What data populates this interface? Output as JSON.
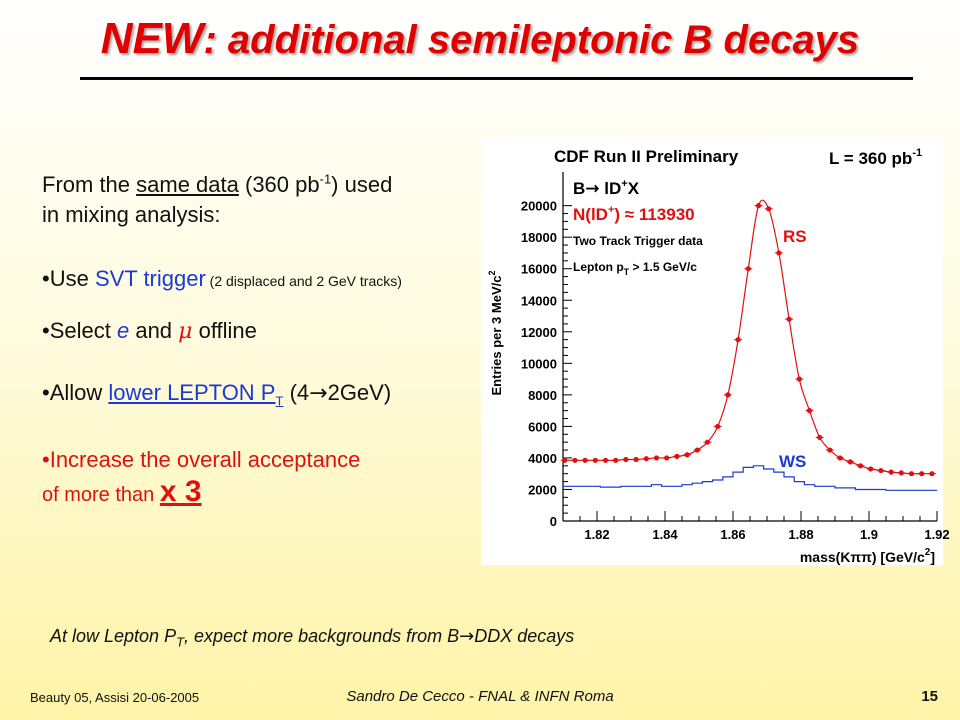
{
  "title": {
    "emph": "NEW",
    "rest": ": additional semileptonic B decays"
  },
  "intro": {
    "p1": "From the ",
    "same_data": "same data",
    "p2": " (360 pb",
    "sup": "-1",
    "p3": ") used",
    "line2": "in mixing analysis:"
  },
  "bullets": {
    "b1_pre": "•Use ",
    "b1_svt": "SVT trigger",
    "b1_small": " (2 displaced and 2 GeV tracks)",
    "b2_pre": "•Select ",
    "b2_e": "e",
    "b2_mid": " and ",
    "b2_mu": "μ",
    "b2_post": " offline",
    "b3_pre": "•Allow ",
    "b3_link": "lower LEPTON P",
    "b3_sub": "T",
    "b3_post": " (4",
    "b3_arrow": "→",
    "b3_end": "2GeV)",
    "b4_line1": "•Increase the overall acceptance",
    "b4_line2": "of more than ",
    "b4_big": "x 3"
  },
  "note": {
    "pre": "At low Lepton P",
    "sub": "T",
    "mid": ", expect more backgrounds from B",
    "arrow": "→",
    "post": "DDX decays"
  },
  "footer": {
    "left": "Beauty 05, Assisi 20-06-2005",
    "center": "Sandro De Cecco - FNAL & INFN Roma",
    "page": "15"
  },
  "plot_text": {
    "header": "CDF Run II Preliminary",
    "lumi_pre": "L = 360 pb",
    "lumi_sup": "-1",
    "decay_b": "B",
    "decay_arrow": "→",
    "decay_rest": " lD",
    "decay_sup": "+",
    "decay_x": "X",
    "yield_pre": "N(lD",
    "yield_sup": "+",
    "yield_post": ") ≈ 113930",
    "trigger": "Two Track Trigger data",
    "lepton_pre": "Lepton p",
    "lepton_sub": "T",
    "lepton_post": " > 1.5 GeV/c",
    "rs": "RS",
    "ws": "WS",
    "ylabel": "Entries per 3 MeV/c",
    "ylabel_sup": "2",
    "xlabel": "mass(Kππ) [GeV/c",
    "xlabel_sup": "2",
    "xlabel_end": "]"
  },
  "colors": {
    "title": "#e00000",
    "rs": "#e01010",
    "ws": "#1a3ad6",
    "accent_blue": "#1a3ad6",
    "accent_red": "#e01010"
  },
  "chart_data": {
    "type": "line",
    "xlabel": "mass(Kππ) [GeV/c2]",
    "ylabel": "Entries per 3 MeV/c2",
    "xlim": [
      1.81,
      1.92
    ],
    "ylim": [
      0,
      21500
    ],
    "x_ticks": [
      1.82,
      1.84,
      1.86,
      1.88,
      1.9,
      1.92
    ],
    "x_tick_labels": [
      "1.82",
      "1.84",
      "1.86",
      "1.88",
      "1.9",
      "1.92"
    ],
    "y_ticks": [
      0,
      2000,
      4000,
      6000,
      8000,
      10000,
      12000,
      14000,
      16000,
      18000,
      20000
    ],
    "y_tick_labels": [
      "0",
      "2000",
      "4000",
      "6000",
      "8000",
      "10000",
      "12000",
      "14000",
      "16000",
      "18000",
      "20000"
    ],
    "legend": [
      "RS",
      "WS"
    ],
    "series": [
      {
        "name": "RS",
        "style": "points-with-fit",
        "x": [
          1.8105,
          1.8135,
          1.8165,
          1.8195,
          1.8225,
          1.8255,
          1.8285,
          1.8315,
          1.8345,
          1.8375,
          1.8405,
          1.8435,
          1.8465,
          1.8495,
          1.8525,
          1.8555,
          1.8585,
          1.8615,
          1.8645,
          1.8675,
          1.8705,
          1.8735,
          1.8765,
          1.8795,
          1.8825,
          1.8855,
          1.8885,
          1.8915,
          1.8945,
          1.8975,
          1.9005,
          1.9035,
          1.9065,
          1.9095,
          1.9125,
          1.9155,
          1.9185
        ],
        "values": [
          3850,
          3850,
          3850,
          3850,
          3850,
          3850,
          3900,
          3900,
          3950,
          4000,
          4000,
          4100,
          4200,
          4500,
          5000,
          6000,
          8000,
          11500,
          16000,
          20000,
          19800,
          17000,
          12800,
          9000,
          7000,
          5300,
          4500,
          4000,
          3750,
          3500,
          3300,
          3200,
          3100,
          3050,
          3000,
          3000,
          3000
        ]
      },
      {
        "name": "WS",
        "style": "histogram",
        "x": [
          1.8105,
          1.8135,
          1.8165,
          1.8195,
          1.8225,
          1.8255,
          1.8285,
          1.8315,
          1.8345,
          1.8375,
          1.8405,
          1.8435,
          1.8465,
          1.8495,
          1.8525,
          1.8555,
          1.8585,
          1.8615,
          1.8645,
          1.8675,
          1.8705,
          1.8735,
          1.8765,
          1.8795,
          1.8825,
          1.8855,
          1.8885,
          1.8915,
          1.8945,
          1.8975,
          1.9005,
          1.9035,
          1.9065,
          1.9095,
          1.9125,
          1.9155,
          1.9185
        ],
        "values": [
          2200,
          2200,
          2200,
          2200,
          2150,
          2150,
          2200,
          2200,
          2200,
          2300,
          2200,
          2200,
          2300,
          2400,
          2500,
          2600,
          2800,
          3100,
          3400,
          3500,
          3300,
          3100,
          2800,
          2500,
          2300,
          2200,
          2200,
          2100,
          2100,
          2000,
          2000,
          2000,
          1950,
          1950,
          1950,
          1950,
          1950
        ]
      }
    ]
  }
}
